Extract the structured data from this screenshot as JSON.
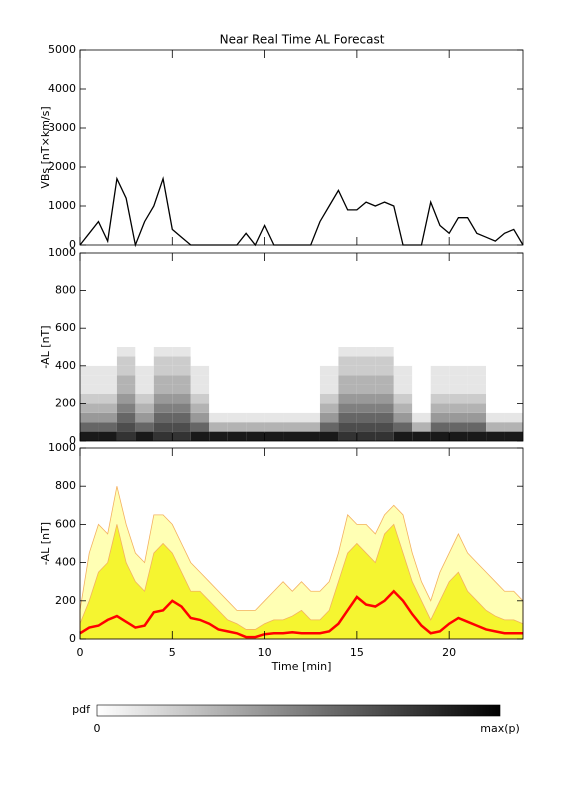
{
  "chart_data": [
    {
      "type": "line",
      "title": "Near Real Time AL Forecast",
      "ylabel": "VBs [nT×km/s]",
      "color": "#000000",
      "xlim": [
        0,
        24
      ],
      "xticks": [
        0,
        5,
        10,
        15,
        20
      ],
      "ylim": [
        0,
        5000
      ],
      "yticks": [
        0,
        1000,
        2000,
        3000,
        4000,
        5000
      ],
      "x": [
        0,
        0.5,
        1,
        1.5,
        2,
        2.5,
        3,
        3.5,
        4,
        4.5,
        5,
        5.5,
        6,
        6.5,
        7,
        7.5,
        8,
        8.5,
        9,
        9.5,
        10,
        10.5,
        11,
        11.5,
        12,
        12.5,
        13,
        13.5,
        14,
        14.5,
        15,
        15.5,
        16,
        16.5,
        17,
        17.5,
        18,
        18.5,
        19,
        19.5,
        20,
        20.5,
        21,
        21.5,
        22,
        22.5,
        23,
        23.5,
        24
      ],
      "values": [
        0,
        300,
        600,
        100,
        1700,
        1200,
        0,
        600,
        1000,
        1700,
        400,
        200,
        0,
        0,
        0,
        0,
        0,
        0,
        300,
        0,
        500,
        0,
        0,
        0,
        0,
        0,
        600,
        1000,
        1400,
        900,
        900,
        1100,
        1000,
        1100,
        1000,
        0,
        0,
        0,
        1100,
        500,
        300,
        700,
        700,
        300,
        200,
        100,
        300,
        400,
        0
      ]
    },
    {
      "type": "heatmap",
      "ylabel": "-AL [nT]",
      "xlim": [
        0,
        24
      ],
      "xticks": [
        0,
        5,
        10,
        15,
        20
      ],
      "ylim": [
        0,
        1000
      ],
      "yticks": [
        0,
        200,
        400,
        600,
        800,
        1000
      ],
      "xbins": [
        0,
        1,
        2,
        3,
        4,
        5,
        6,
        7,
        8,
        9,
        10,
        11,
        12,
        13,
        14,
        15,
        16,
        17,
        18,
        19,
        20,
        21,
        22,
        23,
        24
      ],
      "ybins": [
        0,
        50,
        100,
        150,
        200,
        250,
        300,
        350,
        400,
        450,
        500
      ],
      "z": [
        [
          0.9,
          0.6,
          0.4,
          0.3,
          0.2,
          0.1,
          0.1,
          0.1,
          0,
          0
        ],
        [
          0.9,
          0.6,
          0.4,
          0.3,
          0.2,
          0.1,
          0.1,
          0.1,
          0,
          0
        ],
        [
          0.8,
          0.7,
          0.6,
          0.5,
          0.4,
          0.3,
          0.3,
          0.2,
          0.2,
          0.1
        ],
        [
          0.9,
          0.6,
          0.4,
          0.3,
          0.2,
          0.1,
          0.1,
          0.1,
          0,
          0
        ],
        [
          0.8,
          0.7,
          0.6,
          0.5,
          0.4,
          0.3,
          0.3,
          0.2,
          0.2,
          0.1
        ],
        [
          0.8,
          0.7,
          0.6,
          0.5,
          0.4,
          0.3,
          0.3,
          0.2,
          0.2,
          0.1
        ],
        [
          0.9,
          0.6,
          0.4,
          0.3,
          0.2,
          0.1,
          0.1,
          0.1,
          0,
          0
        ],
        [
          0.9,
          0.3,
          0.1,
          0,
          0,
          0,
          0,
          0,
          0,
          0
        ],
        [
          0.9,
          0.3,
          0.1,
          0,
          0,
          0,
          0,
          0,
          0,
          0
        ],
        [
          0.9,
          0.3,
          0.1,
          0,
          0,
          0,
          0,
          0,
          0,
          0
        ],
        [
          0.9,
          0.3,
          0.1,
          0,
          0,
          0,
          0,
          0,
          0,
          0
        ],
        [
          0.9,
          0.3,
          0.1,
          0,
          0,
          0,
          0,
          0,
          0,
          0
        ],
        [
          0.9,
          0.3,
          0.1,
          0,
          0,
          0,
          0,
          0,
          0,
          0
        ],
        [
          0.9,
          0.6,
          0.4,
          0.3,
          0.2,
          0.1,
          0.1,
          0.1,
          0,
          0
        ],
        [
          0.8,
          0.7,
          0.6,
          0.5,
          0.4,
          0.3,
          0.3,
          0.2,
          0.2,
          0.1
        ],
        [
          0.8,
          0.7,
          0.6,
          0.5,
          0.4,
          0.3,
          0.3,
          0.2,
          0.2,
          0.1
        ],
        [
          0.8,
          0.7,
          0.6,
          0.5,
          0.4,
          0.3,
          0.3,
          0.2,
          0.2,
          0.1
        ],
        [
          0.9,
          0.6,
          0.4,
          0.3,
          0.2,
          0.1,
          0.1,
          0.1,
          0,
          0
        ],
        [
          0.9,
          0.3,
          0.1,
          0,
          0,
          0,
          0,
          0,
          0,
          0
        ],
        [
          0.9,
          0.6,
          0.4,
          0.3,
          0.2,
          0.1,
          0.1,
          0.1,
          0,
          0
        ],
        [
          0.9,
          0.6,
          0.4,
          0.3,
          0.2,
          0.1,
          0.1,
          0.1,
          0,
          0
        ],
        [
          0.9,
          0.6,
          0.4,
          0.3,
          0.2,
          0.1,
          0.1,
          0.1,
          0,
          0
        ],
        [
          0.9,
          0.3,
          0.1,
          0,
          0,
          0,
          0,
          0,
          0,
          0
        ],
        [
          0.9,
          0.3,
          0.1,
          0,
          0,
          0,
          0,
          0,
          0,
          0
        ]
      ],
      "colorbar": {
        "label": "pdf",
        "min_label": "0",
        "max_label": "max(p)"
      }
    },
    {
      "type": "area",
      "ylabel": "-AL [nT]",
      "xlabel": "Time [min]",
      "xlim": [
        0,
        24
      ],
      "xticks": [
        0,
        5,
        10,
        15,
        20
      ],
      "ylim": [
        0,
        1000
      ],
      "yticks": [
        0,
        200,
        400,
        600,
        800,
        1000
      ],
      "x": [
        0,
        0.5,
        1,
        1.5,
        2,
        2.5,
        3,
        3.5,
        4,
        4.5,
        5,
        5.5,
        6,
        6.5,
        7,
        7.5,
        8,
        8.5,
        9,
        9.5,
        10,
        10.5,
        11,
        11.5,
        12,
        12.5,
        13,
        13.5,
        14,
        14.5,
        15,
        15.5,
        16,
        16.5,
        17,
        17.5,
        18,
        18.5,
        19,
        19.5,
        20,
        20.5,
        21,
        21.5,
        22,
        22.5,
        23,
        23.5,
        24
      ],
      "series": [
        {
          "color": "#ffffb4",
          "edge": "#f4b060",
          "fill": true,
          "values": [
            150,
            450,
            600,
            550,
            800,
            600,
            450,
            400,
            650,
            650,
            600,
            500,
            400,
            350,
            300,
            250,
            200,
            150,
            150,
            150,
            200,
            250,
            300,
            250,
            300,
            250,
            250,
            300,
            450,
            650,
            600,
            600,
            550,
            650,
            700,
            650,
            450,
            300,
            200,
            350,
            450,
            550,
            450,
            400,
            350,
            300,
            250,
            250,
            200
          ]
        },
        {
          "color": "#f5f530",
          "edge": "#f4b060",
          "fill": true,
          "values": [
            80,
            200,
            350,
            400,
            600,
            400,
            300,
            250,
            450,
            500,
            450,
            350,
            250,
            250,
            200,
            150,
            100,
            80,
            50,
            50,
            80,
            100,
            100,
            120,
            150,
            100,
            100,
            150,
            300,
            450,
            500,
            450,
            400,
            550,
            600,
            450,
            300,
            200,
            100,
            200,
            300,
            350,
            250,
            200,
            150,
            120,
            100,
            100,
            80
          ]
        },
        {
          "color": "#ff0000",
          "fill": false,
          "values": [
            30,
            60,
            70,
            100,
            120,
            90,
            60,
            70,
            140,
            150,
            200,
            170,
            110,
            100,
            80,
            50,
            40,
            30,
            10,
            10,
            25,
            30,
            30,
            35,
            30,
            30,
            30,
            40,
            80,
            150,
            220,
            180,
            170,
            200,
            250,
            200,
            130,
            70,
            30,
            40,
            80,
            110,
            90,
            70,
            50,
            40,
            30,
            30,
            30
          ]
        }
      ]
    }
  ]
}
